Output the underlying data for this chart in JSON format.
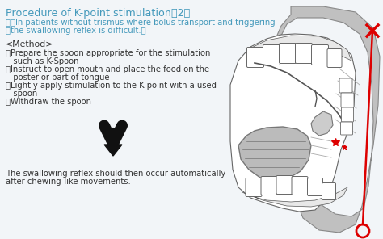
{
  "bg_color": "#f2f5f8",
  "title_line1": "Procedure of K-point stimulation（2）",
  "title_line2": "　（In patients without trismus where bolus transport and triggering",
  "title_line3": "　the swallowing reflex is difficult.）",
  "title_color": "#4499bb",
  "method_header": "<Method>",
  "bullet1a": "・Prepare the spoon appropriate for the stimulation",
  "bullet1b": "   such as K-Spoon",
  "bullet2a": "・Instruct to open mouth and place the food on the",
  "bullet2b": "   posterior part of tongue",
  "bullet3a": "・Lightly apply stimulation to the K point with a used",
  "bullet3b": "   spoon",
  "bullet4": "・Withdraw the spoon",
  "concl1": "The swallowing reflex should then occur automatically",
  "concl2": "after chewing-like movements.",
  "text_color": "#333333",
  "bfs": 7.2,
  "tfs": 9.2,
  "mfs": 7.8,
  "gray_outer": "#c0c0c0",
  "gray_mid": "#d8d8d8",
  "white": "#ffffff",
  "line_color": "#555555",
  "red": "#dd0000"
}
